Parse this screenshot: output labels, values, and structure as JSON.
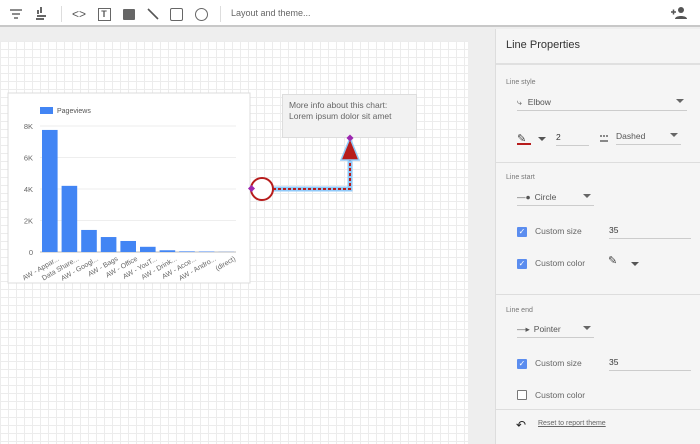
{
  "toolbar": {
    "layout_label": "Layout and theme..."
  },
  "textbox": {
    "line1": "More info about this chart:",
    "line2": "Lorem ipsum dolor sit amet"
  },
  "panel": {
    "title": "Line Properties",
    "line_style": {
      "label": "Line style",
      "type": "Elbow",
      "weight": "2",
      "dash": "Dashed",
      "color": "#b71c1c"
    },
    "line_start": {
      "label": "Line start",
      "shape": "Circle",
      "custom_size_label": "Custom size",
      "custom_size_checked": true,
      "custom_size": "35",
      "custom_color_label": "Custom color",
      "custom_color_checked": true
    },
    "line_end": {
      "label": "Line end",
      "shape": "Pointer",
      "custom_size_label": "Custom size",
      "custom_size_checked": true,
      "custom_size": "35",
      "custom_color_label": "Custom color",
      "custom_color_checked": false
    },
    "reset_label": "Reset to report theme"
  },
  "chart_data": {
    "type": "bar",
    "series": [
      {
        "name": "Pageviews",
        "color": "#4285f4",
        "values": [
          7750,
          4200,
          1400,
          950,
          700,
          330,
          110,
          40,
          30,
          10
        ]
      }
    ],
    "categories": [
      "AW - Appar...",
      "Data Share...",
      "AW - Googl...",
      "AW - Bags",
      "AW - Office",
      "AW - YouT...",
      "AW - Drink...",
      "AW - Acce...",
      "AW - Andro...",
      "(direct)"
    ],
    "yticks": [
      "0",
      "2K",
      "4K",
      "6K",
      "8K"
    ],
    "ylim": [
      0,
      8000
    ],
    "legend": "top-left",
    "grid": true
  }
}
